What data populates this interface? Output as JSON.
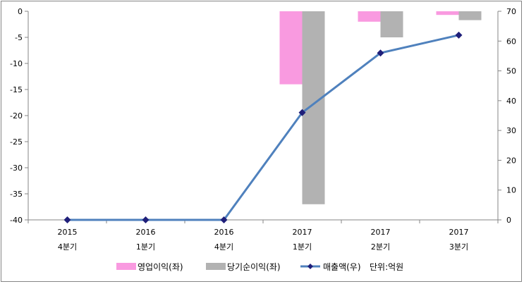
{
  "chart_data": {
    "type": "bar",
    "categories": [
      [
        "2015",
        "4분기"
      ],
      [
        "2016",
        "1분기"
      ],
      [
        "2016",
        "4분기"
      ],
      [
        "2017",
        "1분기"
      ],
      [
        "2017",
        "2분기"
      ],
      [
        "2017",
        "3분기"
      ]
    ],
    "y_left": {
      "ylim": [
        -40,
        0
      ],
      "ticks": [
        0,
        -5,
        -10,
        -15,
        -20,
        -25,
        -30,
        -35,
        -40
      ]
    },
    "y_right": {
      "ylim": [
        0,
        70
      ],
      "ticks": [
        70,
        60,
        50,
        40,
        30,
        20,
        10,
        0
      ]
    },
    "series": [
      {
        "name": "영업이익(좌)",
        "type": "bar",
        "axis": "left",
        "color": "#f99ae0",
        "values": [
          0,
          0,
          0,
          -14,
          -2,
          -0.7
        ]
      },
      {
        "name": "당기순이익(좌)",
        "type": "bar",
        "axis": "left",
        "color": "#b2b2b2",
        "values": [
          0,
          0,
          0,
          -37,
          -5,
          -1.7
        ]
      },
      {
        "name": "매출액(우)",
        "type": "line",
        "axis": "right",
        "color": "#4f81bd",
        "marker_color": "#1f1f7a",
        "values": [
          0,
          0,
          0,
          36,
          56,
          62
        ]
      }
    ],
    "unit_note": "단위:억원",
    "grid": false,
    "legend_position": "bottom"
  }
}
